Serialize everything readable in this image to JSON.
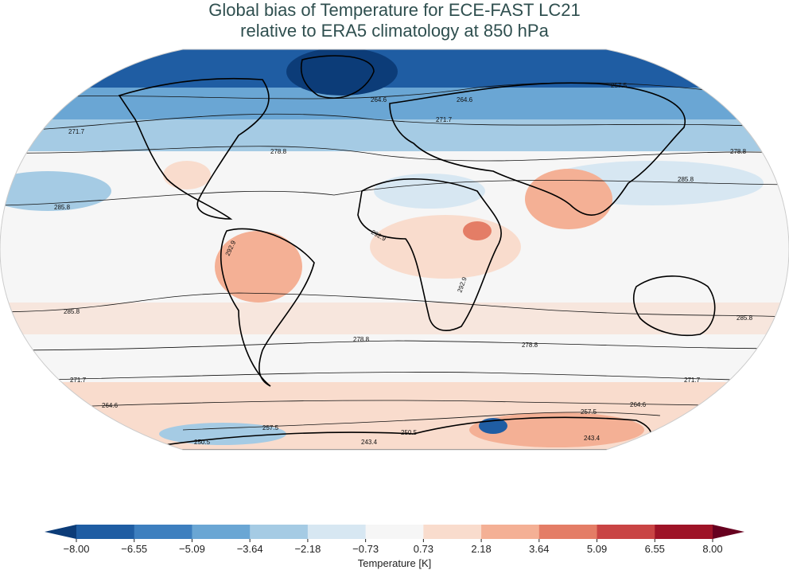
{
  "title": {
    "line1": "Global bias of Temperature for ECE-FAST LC21",
    "line2": "relative to ERA5 climatology at 850 hPa"
  },
  "colorbar": {
    "label": "Temperature [K]",
    "ticks": [
      "−8.00",
      "−6.55",
      "−5.09",
      "−3.64",
      "−2.18",
      "−0.73",
      "0.73",
      "2.18",
      "3.64",
      "5.09",
      "6.55",
      "8.00"
    ],
    "colors": [
      "#0c3c78",
      "#1f5da3",
      "#3d7fbf",
      "#6aa6d4",
      "#a5cbe4",
      "#d7e7f2",
      "#f6f6f6",
      "#f9dccd",
      "#f4b095",
      "#e47d66",
      "#c94444",
      "#9e1327",
      "#67001f"
    ],
    "extend": "both"
  },
  "contour_labels": [
    "285.8",
    "278.8",
    "271.7",
    "264.6",
    "257.5",
    "250.5",
    "243.4",
    "292.9"
  ],
  "colors": {
    "title": "#2f4f4f",
    "warm_bias": "#f4b095",
    "cold_bias": "#3d7fbf",
    "neutral": "#f6f6f6"
  }
}
